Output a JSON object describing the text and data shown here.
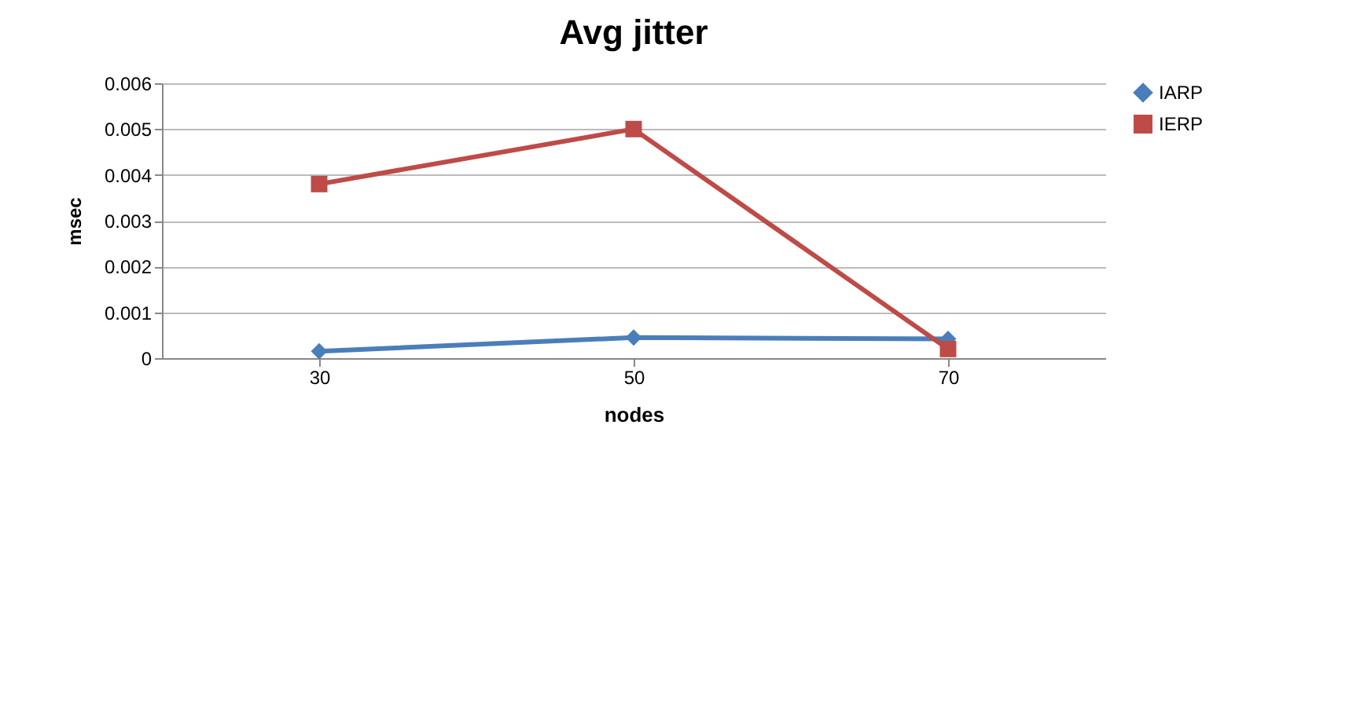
{
  "chart_data": {
    "type": "line",
    "title": "Avg jitter",
    "xlabel": "nodes",
    "ylabel": "msec",
    "categories": [
      "30",
      "50",
      "70"
    ],
    "series": [
      {
        "name": "IARP",
        "color": "#4a7ebb",
        "marker": "diamond",
        "values": [
          0.00015,
          0.00045,
          0.00042
        ]
      },
      {
        "name": "IERP",
        "color": "#be4b48",
        "marker": "square",
        "values": [
          0.0038,
          0.005,
          0.0002
        ]
      }
    ],
    "ylim": [
      0,
      0.006
    ],
    "yticks": [
      0,
      0.001,
      0.002,
      0.003,
      0.004,
      0.005,
      0.006
    ],
    "grid": "y",
    "legend": "right"
  }
}
